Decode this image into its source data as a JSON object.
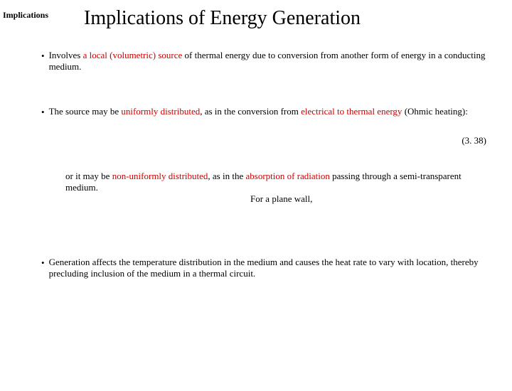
{
  "corner_label": "Implications",
  "title": "Implications of Energy Generation",
  "bullet1": {
    "lead": "Involves ",
    "red1": "a local (volumetric) source",
    "mid": " of thermal energy due to conversion from another form of energy in a conducting medium."
  },
  "bullet2": {
    "lead": "The source may be ",
    "red1": "uniformly distributed",
    "mid": ", as in the conversion from ",
    "red2": "electrical to thermal energy",
    "tail": " (Ohmic heating):"
  },
  "eq_number": "(3. 38)",
  "sub1": {
    "lead": "or it may be ",
    "red1": "non-uniformly distributed",
    "mid": ", as in the ",
    "red2": "absorption of radiation",
    "tail": " passing through a semi-transparent medium."
  },
  "plane_wall": "For a plane wall,",
  "bullet3": "Generation affects the temperature distribution in the medium and causes the heat rate to vary with location, thereby precluding inclusion of the medium in a thermal circuit.",
  "colors": {
    "emphasis": "#cc0000",
    "text": "#000000",
    "background": "#ffffff"
  }
}
